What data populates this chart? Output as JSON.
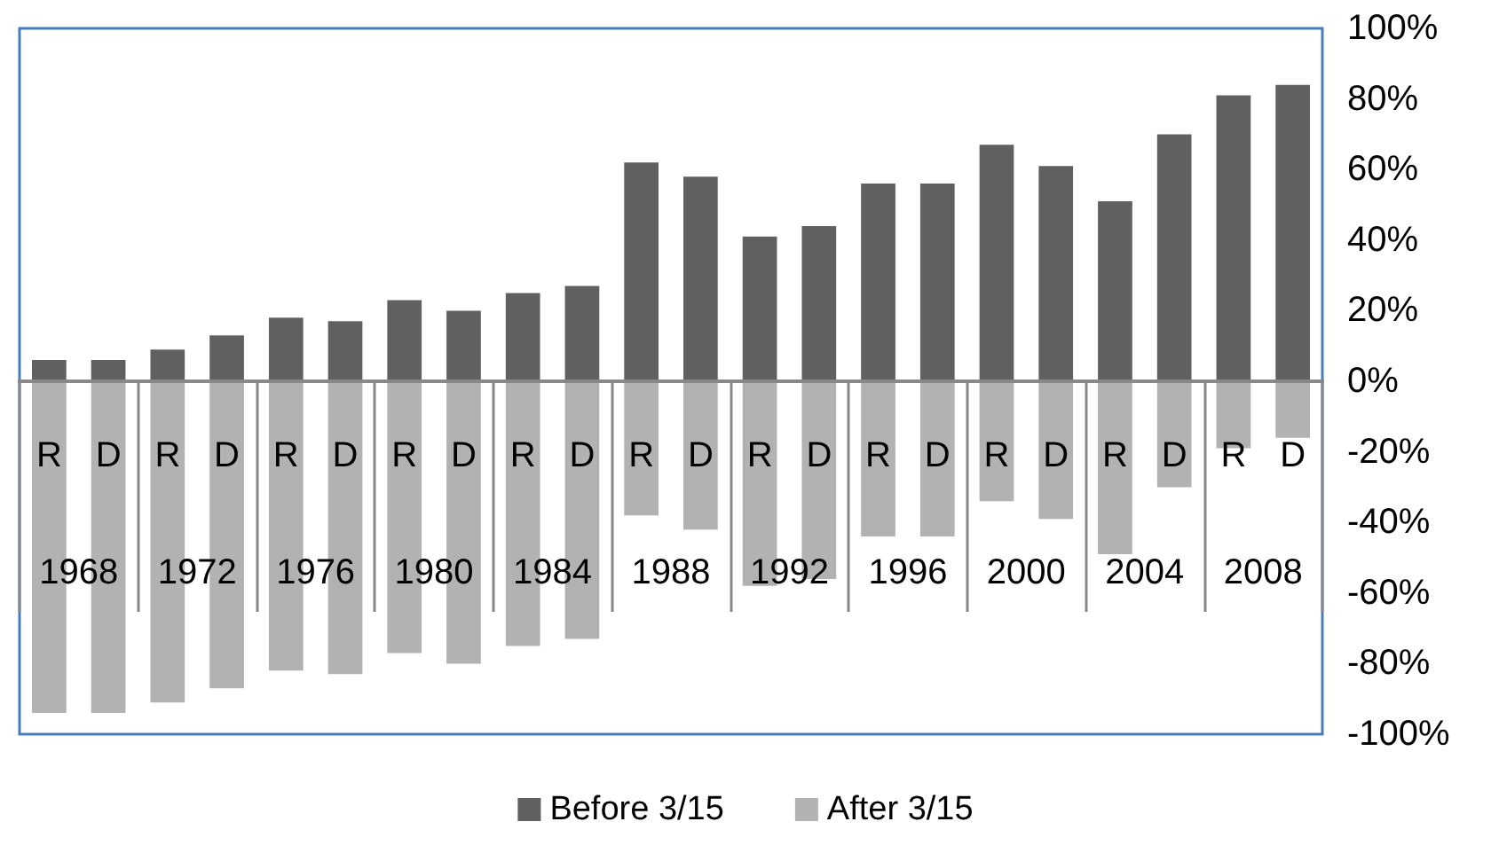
{
  "chart_data": {
    "type": "bar",
    "categories": [
      "R",
      "D",
      "R",
      "D",
      "R",
      "D",
      "R",
      "D",
      "R",
      "D",
      "R",
      "D",
      "R",
      "D",
      "R",
      "D",
      "R",
      "D",
      "R",
      "D",
      "R",
      "D"
    ],
    "annotations": [
      "1968",
      "1972",
      "1976",
      "1980",
      "1984",
      "1988",
      "1992",
      "1996",
      "2000",
      "2004",
      "2008"
    ],
    "series": [
      {
        "name": "Before 3/15",
        "color": "#606060",
        "values": [
          6,
          6,
          9,
          13,
          18,
          17,
          23,
          20,
          25,
          27,
          62,
          58,
          41,
          44,
          56,
          56,
          67,
          61,
          51,
          70,
          81,
          84
        ]
      },
      {
        "name": "After 3/15",
        "color": "#b2b2b2",
        "values": [
          -94,
          -94,
          -91,
          -87,
          -82,
          -83,
          -77,
          -80,
          -75,
          -73,
          -38,
          -42,
          -58,
          -56,
          -44,
          -44,
          -34,
          -39,
          -49,
          -30,
          -19,
          -16
        ]
      }
    ],
    "ylim": [
      -100,
      100
    ],
    "yticks": [
      {
        "value": -100,
        "label": "-100%"
      },
      {
        "value": -80,
        "label": "-80%"
      },
      {
        "value": -60,
        "label": "-60%"
      },
      {
        "value": -40,
        "label": "-40%"
      },
      {
        "value": -20,
        "label": "-20%"
      },
      {
        "value": 0,
        "label": "0%"
      },
      {
        "value": 20,
        "label": "20%"
      },
      {
        "value": 40,
        "label": "40%"
      },
      {
        "value": 60,
        "label": "60%"
      },
      {
        "value": 80,
        "label": "80%"
      },
      {
        "value": 100,
        "label": "100%"
      }
    ],
    "grid": false,
    "stacked": true,
    "legend": "bottom"
  }
}
